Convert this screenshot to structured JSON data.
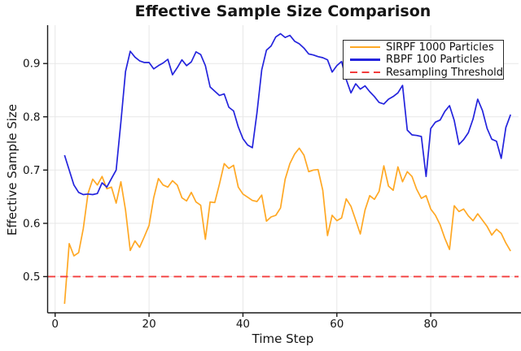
{
  "chart_data": {
    "type": "line",
    "title": "Effective Sample Size Comparison",
    "xlabel": "Time Step",
    "ylabel": "Effective Sample Size",
    "xlim": [
      -1.6,
      98.7
    ],
    "ylim": [
      0.432,
      0.972
    ],
    "xticks": [
      0,
      20,
      40,
      60,
      80
    ],
    "yticks": [
      0.5,
      0.6,
      0.7,
      0.8,
      0.9
    ],
    "grid": true,
    "grid_color": "#e7e7e7",
    "axis_color": "#1a1a1a",
    "legend_position": "top-right",
    "x": [
      2,
      3,
      4,
      5,
      6,
      7,
      8,
      9,
      10,
      11,
      12,
      13,
      14,
      15,
      16,
      17,
      18,
      19,
      20,
      21,
      22,
      23,
      24,
      25,
      26,
      27,
      28,
      29,
      30,
      31,
      32,
      33,
      34,
      35,
      36,
      37,
      38,
      39,
      40,
      41,
      42,
      43,
      44,
      45,
      46,
      47,
      48,
      49,
      50,
      51,
      52,
      53,
      54,
      55,
      56,
      57,
      58,
      59,
      60,
      61,
      62,
      63,
      64,
      65,
      66,
      67,
      68,
      69,
      70,
      71,
      72,
      73,
      74,
      75,
      76,
      77,
      78,
      79,
      80,
      81,
      82,
      83,
      84,
      85,
      86,
      87,
      88,
      89,
      90,
      91,
      92,
      93,
      94,
      95,
      96,
      97
    ],
    "series": [
      {
        "name": "SIRPF 1000 Particles",
        "color": "#ffa824",
        "style": "solid",
        "values": [
          0.449,
          0.562,
          0.539,
          0.545,
          0.59,
          0.656,
          0.683,
          0.672,
          0.688,
          0.665,
          0.668,
          0.638,
          0.678,
          0.625,
          0.549,
          0.567,
          0.555,
          0.575,
          0.596,
          0.648,
          0.684,
          0.672,
          0.668,
          0.68,
          0.672,
          0.648,
          0.642,
          0.658,
          0.64,
          0.634,
          0.57,
          0.64,
          0.639,
          0.674,
          0.712,
          0.703,
          0.709,
          0.668,
          0.655,
          0.649,
          0.643,
          0.641,
          0.653,
          0.604,
          0.612,
          0.615,
          0.629,
          0.683,
          0.712,
          0.73,
          0.741,
          0.728,
          0.697,
          0.7,
          0.701,
          0.662,
          0.577,
          0.615,
          0.605,
          0.61,
          0.646,
          0.632,
          0.606,
          0.58,
          0.625,
          0.652,
          0.645,
          0.66,
          0.708,
          0.67,
          0.662,
          0.706,
          0.678,
          0.697,
          0.688,
          0.664,
          0.647,
          0.652,
          0.627,
          0.615,
          0.597,
          0.572,
          0.551,
          0.633,
          0.622,
          0.627,
          0.614,
          0.605,
          0.618,
          0.606,
          0.594,
          0.578,
          0.589,
          0.581,
          0.563,
          0.548
        ]
      },
      {
        "name": "RBPF 100 Particles",
        "color": "#2424dd",
        "style": "solid",
        "values": [
          0.728,
          0.7,
          0.672,
          0.658,
          0.654,
          0.655,
          0.654,
          0.656,
          0.676,
          0.668,
          0.684,
          0.7,
          0.79,
          0.885,
          0.923,
          0.912,
          0.905,
          0.902,
          0.902,
          0.89,
          0.896,
          0.901,
          0.908,
          0.879,
          0.892,
          0.907,
          0.896,
          0.903,
          0.922,
          0.917,
          0.896,
          0.856,
          0.848,
          0.84,
          0.843,
          0.818,
          0.811,
          0.781,
          0.759,
          0.747,
          0.742,
          0.808,
          0.888,
          0.925,
          0.933,
          0.95,
          0.956,
          0.949,
          0.953,
          0.942,
          0.937,
          0.929,
          0.918,
          0.916,
          0.913,
          0.911,
          0.907,
          0.884,
          0.896,
          0.904,
          0.87,
          0.845,
          0.862,
          0.852,
          0.858,
          0.847,
          0.838,
          0.827,
          0.824,
          0.833,
          0.838,
          0.845,
          0.859,
          0.775,
          0.766,
          0.765,
          0.763,
          0.688,
          0.778,
          0.79,
          0.794,
          0.81,
          0.821,
          0.793,
          0.748,
          0.757,
          0.77,
          0.796,
          0.833,
          0.812,
          0.778,
          0.758,
          0.754,
          0.722,
          0.78,
          0.804
        ]
      },
      {
        "name": "Resampling Threshold",
        "color": "#f23c3c",
        "style": "dashed",
        "constant": 0.5
      }
    ]
  }
}
